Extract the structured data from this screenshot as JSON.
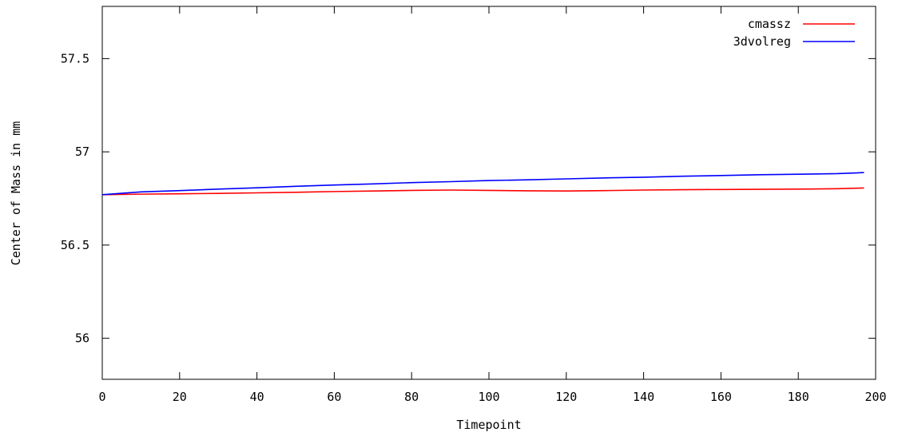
{
  "chart_data": {
    "type": "line",
    "title": "",
    "xlabel": "Timepoint",
    "ylabel": "Center of Mass in mm",
    "xlim": [
      0,
      200
    ],
    "ylim": [
      55.78,
      57.78
    ],
    "x_ticks": [
      0,
      20,
      40,
      60,
      80,
      100,
      120,
      140,
      160,
      180,
      200
    ],
    "x_tick_labels": [
      "0",
      "20",
      "40",
      "60",
      "80",
      "100",
      "120",
      "140",
      "160",
      "180",
      "200"
    ],
    "y_ticks": [
      56,
      56.5,
      57,
      57.5
    ],
    "y_tick_labels": [
      "56",
      "56.5",
      "57",
      "57.5"
    ],
    "grid": false,
    "legend_position": "top-right",
    "series": [
      {
        "name": "cmassz",
        "color": "#ff0000",
        "x": [
          0,
          10,
          20,
          30,
          40,
          50,
          60,
          70,
          80,
          90,
          100,
          110,
          120,
          130,
          140,
          150,
          160,
          170,
          180,
          190,
          195,
          197
        ],
        "values": [
          56.77,
          56.773,
          56.775,
          56.777,
          56.78,
          56.783,
          56.787,
          56.79,
          56.793,
          56.795,
          56.793,
          56.791,
          56.79,
          56.792,
          56.795,
          56.797,
          56.798,
          56.799,
          56.8,
          56.802,
          56.805,
          56.806
        ]
      },
      {
        "name": "3dvolreg",
        "color": "#0000ff",
        "x": [
          0,
          10,
          20,
          30,
          40,
          50,
          60,
          70,
          80,
          90,
          100,
          110,
          120,
          130,
          140,
          150,
          160,
          170,
          180,
          190,
          195,
          197
        ],
        "values": [
          56.77,
          56.785,
          56.792,
          56.8,
          56.807,
          56.815,
          56.822,
          56.828,
          56.835,
          56.84,
          56.846,
          56.85,
          56.855,
          56.86,
          56.864,
          56.869,
          56.873,
          56.877,
          56.88,
          56.883,
          56.887,
          56.889
        ]
      }
    ]
  }
}
